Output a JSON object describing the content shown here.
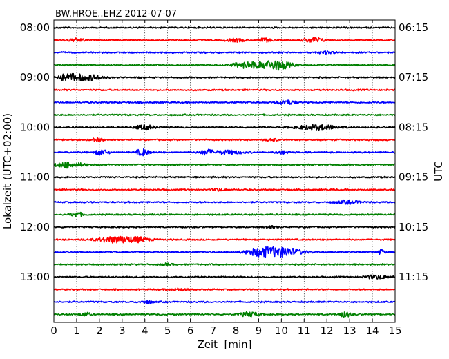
{
  "chart_data": {
    "type": "line",
    "title": "BW.HROE..EHZ 2012-07-07",
    "xlabel": "Zeit  [min]",
    "ylabel_left": "Lokalzeit (UTC+02:00)",
    "ylabel_right": "UTC",
    "xlim": [
      0,
      15
    ],
    "x_ticks": [
      "0",
      "1",
      "2",
      "3",
      "4",
      "5",
      "6",
      "7",
      "8",
      "9",
      "10",
      "11",
      "12",
      "13",
      "14",
      "15"
    ],
    "left_tick_labels": [
      "08:00",
      "09:00",
      "10:00",
      "11:00",
      "12:00",
      "13:00"
    ],
    "right_tick_labels": [
      "06:15",
      "07:15",
      "08:15",
      "09:15",
      "10:15",
      "11:15"
    ],
    "grid": {
      "x": "dotted",
      "y": false
    },
    "color_cycle": [
      "#000000",
      "#ff0000",
      "#0000ff",
      "#008000"
    ],
    "trace_interval_min": 15,
    "series": [
      {
        "start": "08:00",
        "events": []
      },
      {
        "start": "08:15",
        "events": [
          [
            1.0,
            0.3,
            0.8
          ],
          [
            8.0,
            0.3,
            0.8
          ],
          [
            9.3,
            0.2,
            1.0
          ],
          [
            11.4,
            0.3,
            1.4
          ]
        ]
      },
      {
        "start": "08:30",
        "events": [
          [
            12.0,
            0.3,
            0.5
          ]
        ]
      },
      {
        "start": "08:45",
        "events": [
          [
            8.4,
            0.4,
            1.5
          ],
          [
            9.6,
            0.5,
            2.2
          ],
          [
            10.0,
            0.3,
            0.8
          ]
        ]
      },
      {
        "start": "09:00",
        "events": [
          [
            0.8,
            0.6,
            2.0
          ],
          [
            1.8,
            0.3,
            0.8
          ]
        ]
      },
      {
        "start": "09:15",
        "events": []
      },
      {
        "start": "09:30",
        "events": [
          [
            10.2,
            0.3,
            1.2
          ]
        ]
      },
      {
        "start": "09:45",
        "events": []
      },
      {
        "start": "10:00",
        "events": [
          [
            4.0,
            0.3,
            1.2
          ],
          [
            11.6,
            0.6,
            1.5
          ]
        ]
      },
      {
        "start": "10:15",
        "events": [
          [
            1.9,
            0.2,
            0.8
          ],
          [
            9.6,
            0.2,
            0.6
          ]
        ]
      },
      {
        "start": "10:30",
        "events": [
          [
            2.1,
            0.2,
            1.5
          ],
          [
            3.9,
            0.2,
            1.8
          ],
          [
            6.7,
            0.2,
            1.3
          ],
          [
            7.6,
            0.5,
            1.0
          ],
          [
            10.0,
            0.2,
            0.8
          ]
        ]
      },
      {
        "start": "10:45",
        "events": [
          [
            0.6,
            0.5,
            1.5
          ]
        ]
      },
      {
        "start": "11:00",
        "events": []
      },
      {
        "start": "11:15",
        "events": [
          [
            7.2,
            0.2,
            0.6
          ]
        ]
      },
      {
        "start": "11:30",
        "events": [
          [
            12.9,
            0.4,
            0.8
          ]
        ]
      },
      {
        "start": "11:45",
        "events": [
          [
            1.0,
            0.2,
            1.2
          ]
        ]
      },
      {
        "start": "12:00",
        "events": [
          [
            9.5,
            0.2,
            0.6
          ]
        ]
      },
      {
        "start": "12:15",
        "events": [
          [
            2.8,
            0.6,
            1.8
          ],
          [
            3.8,
            0.3,
            0.8
          ]
        ]
      },
      {
        "start": "12:30",
        "events": [
          [
            9.0,
            0.4,
            1.8
          ],
          [
            10.0,
            0.6,
            2.6
          ],
          [
            14.4,
            0.1,
            1.5
          ]
        ]
      },
      {
        "start": "12:45",
        "events": [
          [
            5.0,
            0.2,
            0.5
          ]
        ]
      },
      {
        "start": "13:00",
        "events": [
          [
            14.2,
            0.4,
            0.9
          ]
        ]
      },
      {
        "start": "13:15",
        "events": [
          [
            5.5,
            0.3,
            0.6
          ]
        ]
      },
      {
        "start": "13:30",
        "events": [
          [
            4.1,
            0.2,
            0.7
          ]
        ]
      },
      {
        "start": "13:45",
        "events": [
          [
            1.4,
            0.2,
            0.8
          ],
          [
            8.6,
            0.3,
            1.2
          ],
          [
            12.8,
            0.2,
            1.3
          ]
        ]
      }
    ]
  }
}
